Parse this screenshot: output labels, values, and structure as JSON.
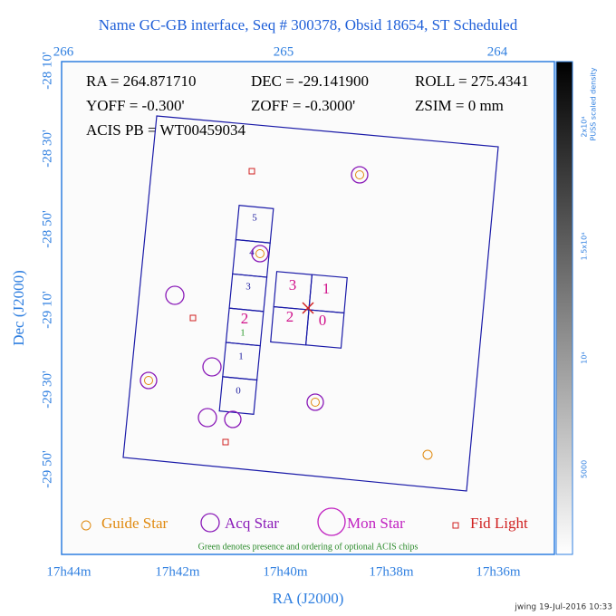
{
  "title": "Name GC-GB interface, Seq # 300378, Obsid 18654, ST Scheduled",
  "axes": {
    "top_ticks": [
      "266",
      "265",
      "264"
    ],
    "left_ticks": [
      "-28 10'",
      "-28 30'",
      "-28 50'",
      "-29 10'",
      "-29 30'",
      "-29 50'"
    ],
    "bottom_ticks": [
      "17h44m",
      "17h42m",
      "17h40m",
      "17h38m",
      "17h36m"
    ],
    "x_label": "RA (J2000)",
    "y_label": "Dec (J2000)"
  },
  "info": [
    "RA = 264.871710",
    "DEC = -29.141900",
    "ROLL = 275.4341",
    "YOFF = -0.300'",
    "ZOFF = -0.3000'",
    "ZSIM = 0 mm",
    "ACIS PB = WT00459034"
  ],
  "chips": {
    "s": [
      "5",
      "4",
      "3",
      "2",
      "1",
      "0"
    ],
    "i": [
      "3",
      "1",
      "2",
      "0"
    ],
    "optional": "1"
  },
  "legend": [
    "Guide Star",
    "Acq Star",
    "Mon Star",
    "Fid Light"
  ],
  "note": "Green denotes presence and ordering of optional ACIS chips",
  "colorbar": {
    "label": "PUSS scaled density",
    "ticks": [
      "2x10⁴",
      "1.5x10⁴",
      "10⁴",
      "5000"
    ]
  },
  "footer": "jwing 19-Jul-2016 10:33"
}
